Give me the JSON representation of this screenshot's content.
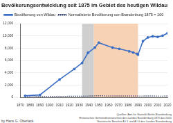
{
  "chart_data": {
    "type": "line",
    "title": "Bevölkerungsentwicklung seit 1875 im Gebiet des heutigen Wildau",
    "x": [
      1875,
      1890,
      1910,
      1925,
      1933,
      1939,
      1946,
      1950,
      1964,
      1971,
      1981,
      1985,
      1989,
      1990,
      1995,
      2000,
      2005,
      2010,
      2015,
      2020
    ],
    "series": [
      {
        "name": "Bevölkerung von Wildau",
        "color": "#3b6fc6",
        "line_style": "solid",
        "marker": "circle",
        "values": [
          240,
          380,
          2900,
          4600,
          5600,
          7250,
          8100,
          8900,
          8100,
          7900,
          7500,
          7300,
          7100,
          6950,
          9150,
          9750,
          9950,
          9850,
          10050,
          10450
        ]
      },
      {
        "name": "Normalisierte Bevölkerung von Brandenburg 1875 = 100",
        "color": "#1f2d5a",
        "line_style": "dotted",
        "marker": "none",
        "values": [
          100,
          125,
          165,
          180,
          190,
          200,
          230,
          240,
          210,
          215,
          215,
          210,
          205,
          200,
          200,
          210,
          205,
          200,
          200,
          205
        ]
      }
    ],
    "xlim": [
      1870,
      2020
    ],
    "xticks": [
      1870,
      1880,
      1890,
      1900,
      1910,
      1920,
      1930,
      1940,
      1950,
      1960,
      1970,
      1980,
      1990,
      2000,
      2010,
      2020
    ],
    "ylim": [
      0,
      12000
    ],
    "yticks": [
      0,
      {
        "value": 2000,
        "label": "2,000"
      },
      {
        "value": 4000,
        "label": "4,000"
      },
      {
        "value": 6000,
        "label": "6,000"
      },
      {
        "value": 8000,
        "label": "8,000"
      },
      {
        "value": 10000,
        "label": "10,000"
      },
      {
        "value": 12000,
        "label": "12,000"
      }
    ],
    "grid": true,
    "legend": "upper left",
    "periods": [
      {
        "from": 1933,
        "to": 1945,
        "color": "#cfcfcf"
      },
      {
        "from": 1945,
        "to": 1990,
        "color": "#f8d2b4"
      }
    ],
    "credit": "by Hans G. Oberlack",
    "source": [
      "Quellen: Amt für Statistik Berlin-Brandenburg",
      "Historisches Gemeindeverzeichnis des Landes Brandenburg 1875 bis 2005",
      "Statistische Berichte A I 1 und A I 4 des Landes Brandenburg"
    ]
  }
}
